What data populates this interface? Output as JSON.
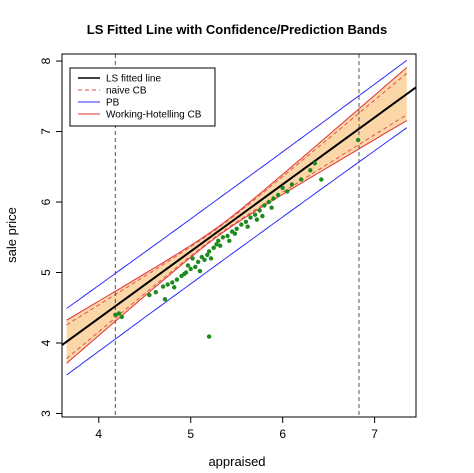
{
  "chart_data": {
    "type": "scatter",
    "title": "LS Fitted Line with Confidence/Prediction Bands",
    "xlabel": "appraised",
    "ylabel": "sale price",
    "xlim": [
      3.6,
      7.45
    ],
    "ylim": [
      2.95,
      8.1
    ],
    "xticks": [
      4,
      5,
      6,
      7
    ],
    "yticks": [
      3,
      4,
      5,
      6,
      7,
      8
    ],
    "vlines": [
      4.18,
      6.83
    ],
    "fit": {
      "intercept": 0.55,
      "slope": 0.95
    },
    "bands": {
      "xbar": 5.3,
      "cb_a": 0.05,
      "cb_b": 0.02,
      "wh_factor": 1.28,
      "pb_a": 0.46,
      "pb_b": 0.004
    },
    "legend_position": "top-left",
    "legend": [
      {
        "label": "LS fitted line",
        "color": "#000000",
        "dash": ""
      },
      {
        "label": "naive CB",
        "color": "#e05050",
        "dash": "4,3"
      },
      {
        "label": "PB",
        "color": "#2b2bff",
        "dash": ""
      },
      {
        "label": "Working-Hotelling CB",
        "color": "#e03030",
        "dash": ""
      }
    ],
    "band_fill_color": "#fbd7a8",
    "point_color": "#1e8a1e",
    "points": [
      [
        4.18,
        4.4
      ],
      [
        4.22,
        4.42
      ],
      [
        4.25,
        4.37
      ],
      [
        4.55,
        4.68
      ],
      [
        4.62,
        4.72
      ],
      [
        4.7,
        4.8
      ],
      [
        4.75,
        4.83
      ],
      [
        4.8,
        4.86
      ],
      [
        4.82,
        4.79
      ],
      [
        4.85,
        4.9
      ],
      [
        4.9,
        4.95
      ],
      [
        4.93,
        4.98
      ],
      [
        4.95,
        5.0
      ],
      [
        4.97,
        5.1
      ],
      [
        5.0,
        5.05
      ],
      [
        5.02,
        5.2
      ],
      [
        5.05,
        5.08
      ],
      [
        5.08,
        5.15
      ],
      [
        5.1,
        5.02
      ],
      [
        5.12,
        5.22
      ],
      [
        5.15,
        5.18
      ],
      [
        5.18,
        5.25
      ],
      [
        5.2,
        5.3
      ],
      [
        5.22,
        5.2
      ],
      [
        5.25,
        5.35
      ],
      [
        5.28,
        5.4
      ],
      [
        5.3,
        5.45
      ],
      [
        5.32,
        5.38
      ],
      [
        5.35,
        5.5
      ],
      [
        5.4,
        5.52
      ],
      [
        5.42,
        5.45
      ],
      [
        5.45,
        5.58
      ],
      [
        5.48,
        5.55
      ],
      [
        5.5,
        5.62
      ],
      [
        5.55,
        5.68
      ],
      [
        5.6,
        5.72
      ],
      [
        5.62,
        5.65
      ],
      [
        5.65,
        5.78
      ],
      [
        5.7,
        5.82
      ],
      [
        5.72,
        5.75
      ],
      [
        5.75,
        5.88
      ],
      [
        5.78,
        5.8
      ],
      [
        5.8,
        5.95
      ],
      [
        5.85,
        6.0
      ],
      [
        5.88,
        5.92
      ],
      [
        5.9,
        6.05
      ],
      [
        5.95,
        6.1
      ],
      [
        6.0,
        6.2
      ],
      [
        6.05,
        6.15
      ],
      [
        6.1,
        6.25
      ],
      [
        6.2,
        6.32
      ],
      [
        6.3,
        6.45
      ],
      [
        6.35,
        6.55
      ],
      [
        6.42,
        6.32
      ],
      [
        6.82,
        6.88
      ],
      [
        4.72,
        4.62
      ],
      [
        5.2,
        4.09
      ]
    ]
  }
}
